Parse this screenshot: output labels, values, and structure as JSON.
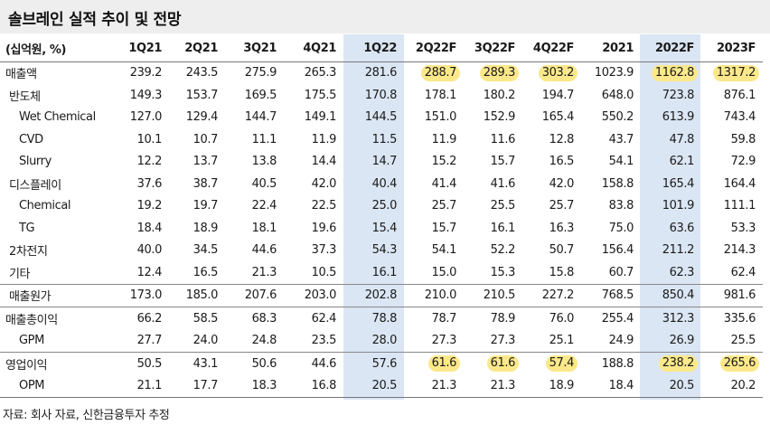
{
  "title": "솔브레인 실적 추이 및 전망",
  "columns": [
    "(십억원, %)",
    "1Q21",
    "2Q21",
    "3Q21",
    "4Q21",
    "1Q22",
    "2Q22F",
    "3Q22F",
    "4Q22F",
    "2021",
    "2022F",
    "2023F"
  ],
  "shaded_columns": [
    "1Q22",
    "2022F"
  ],
  "colors": {
    "title_bg": "#eeeeee",
    "shaded_column_bg": "#dbe6f4",
    "highlight": "#fbe88a"
  },
  "rows": [
    {
      "label": "매출액",
      "indent": 0,
      "values": [
        "239.2",
        "243.5",
        "275.9",
        "265.3",
        "281.6",
        "288.7",
        "289.3",
        "303.2",
        "1023.9",
        "1162.8",
        "1317.2"
      ],
      "highlighted": [
        false,
        false,
        false,
        false,
        false,
        true,
        true,
        true,
        false,
        true,
        true
      ]
    },
    {
      "label": "반도체",
      "indent": 1,
      "values": [
        "149.3",
        "153.7",
        "169.5",
        "175.5",
        "170.8",
        "178.1",
        "180.2",
        "194.7",
        "648.0",
        "723.8",
        "876.1"
      ]
    },
    {
      "label": "Wet Chemical",
      "indent": 2,
      "values": [
        "127.0",
        "129.4",
        "144.7",
        "149.1",
        "144.5",
        "151.0",
        "152.9",
        "165.4",
        "550.2",
        "613.9",
        "743.4"
      ]
    },
    {
      "label": "CVD",
      "indent": 2,
      "values": [
        "10.1",
        "10.7",
        "11.1",
        "11.9",
        "11.5",
        "11.9",
        "11.6",
        "12.8",
        "43.7",
        "47.8",
        "59.8"
      ]
    },
    {
      "label": "Slurry",
      "indent": 2,
      "values": [
        "12.2",
        "13.7",
        "13.8",
        "14.4",
        "14.7",
        "15.2",
        "15.7",
        "16.5",
        "54.1",
        "62.1",
        "72.9"
      ]
    },
    {
      "label": "디스플레이",
      "indent": 1,
      "values": [
        "37.6",
        "38.7",
        "40.5",
        "42.0",
        "40.4",
        "41.4",
        "41.6",
        "42.0",
        "158.8",
        "165.4",
        "164.4"
      ]
    },
    {
      "label": "Chemical",
      "indent": 2,
      "values": [
        "19.2",
        "19.7",
        "22.4",
        "22.5",
        "25.0",
        "25.7",
        "25.5",
        "25.7",
        "83.8",
        "101.9",
        "111.1"
      ]
    },
    {
      "label": "TG",
      "indent": 2,
      "values": [
        "18.4",
        "18.9",
        "18.1",
        "19.6",
        "15.4",
        "15.7",
        "16.1",
        "16.3",
        "75.0",
        "63.6",
        "53.3"
      ]
    },
    {
      "label": "2차전지",
      "indent": 1,
      "values": [
        "40.0",
        "34.5",
        "44.6",
        "37.3",
        "54.3",
        "54.1",
        "52.2",
        "50.7",
        "156.4",
        "211.2",
        "214.3"
      ]
    },
    {
      "label": "기타",
      "indent": 1,
      "values": [
        "12.4",
        "16.5",
        "21.3",
        "10.5",
        "16.1",
        "15.0",
        "15.3",
        "15.8",
        "60.7",
        "62.3",
        "62.4"
      ]
    },
    {
      "label": "매출원가",
      "indent": 1,
      "sep": true,
      "values": [
        "173.0",
        "185.0",
        "207.6",
        "203.0",
        "202.8",
        "210.0",
        "210.5",
        "227.2",
        "768.5",
        "850.4",
        "981.6"
      ]
    },
    {
      "label": "매출총이익",
      "indent": 0,
      "sep": true,
      "values": [
        "66.2",
        "58.5",
        "68.3",
        "62.4",
        "78.8",
        "78.7",
        "78.9",
        "76.0",
        "255.4",
        "312.3",
        "335.6"
      ]
    },
    {
      "label": "GPM",
      "indent": 2,
      "values": [
        "27.7",
        "24.0",
        "24.8",
        "23.5",
        "28.0",
        "27.3",
        "27.3",
        "25.1",
        "24.9",
        "26.9",
        "25.5"
      ]
    },
    {
      "label": "영업이익",
      "indent": 0,
      "sep": true,
      "values": [
        "50.5",
        "43.1",
        "50.6",
        "44.6",
        "57.6",
        "61.6",
        "61.6",
        "57.4",
        "188.8",
        "238.2",
        "265.6"
      ],
      "highlighted": [
        false,
        false,
        false,
        false,
        false,
        true,
        true,
        true,
        false,
        true,
        true
      ]
    },
    {
      "label": "OPM",
      "indent": 2,
      "last": true,
      "values": [
        "21.1",
        "17.7",
        "18.3",
        "16.8",
        "20.5",
        "21.3",
        "21.3",
        "18.9",
        "18.4",
        "20.5",
        "20.2"
      ]
    }
  ],
  "source": "자료: 회사 자료, 신한금융투자 추정"
}
